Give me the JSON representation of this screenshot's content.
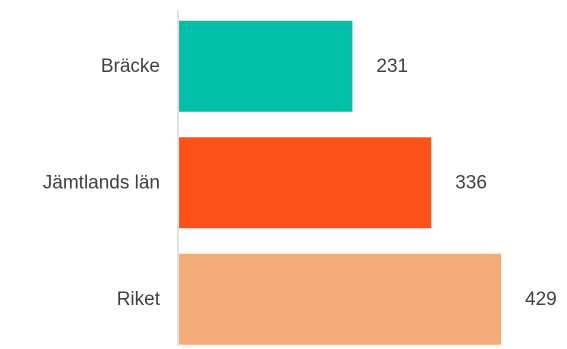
{
  "chart_data": {
    "type": "bar",
    "orientation": "horizontal",
    "categories": [
      "Bräcke",
      "Jämtlands län",
      "Riket"
    ],
    "values": [
      231,
      336,
      429
    ],
    "colors": [
      "#00BFA6",
      "#FC5217",
      "#F4AC7A"
    ],
    "value_labels": [
      "231",
      "336",
      "429"
    ],
    "xlim": [
      0,
      429
    ],
    "grid": false,
    "legend": "none"
  }
}
